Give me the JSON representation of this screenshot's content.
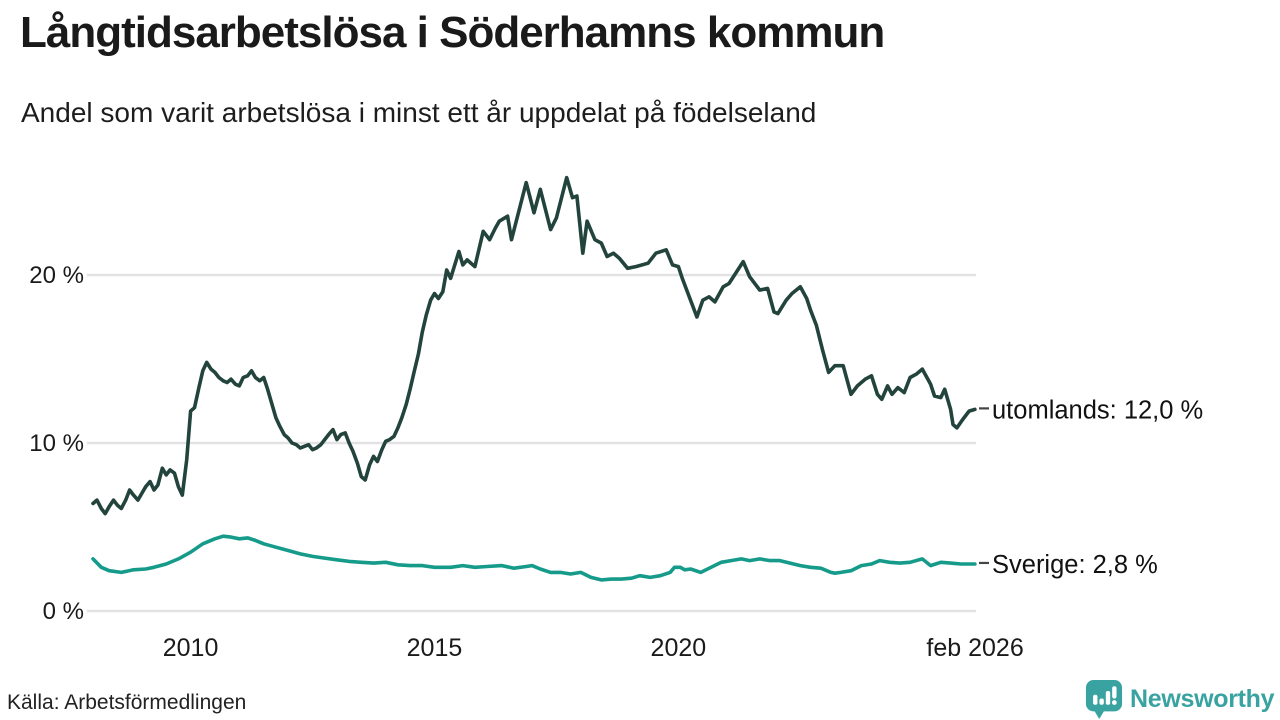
{
  "header": {
    "title": "Långtidsarbetslösa i Söderhamns kommun",
    "subtitle": "Andel som varit arbetslösa i minst ett år uppdelat på födelseland"
  },
  "footer": {
    "source": "Källa: Arbetsförmedlingen",
    "brand": "Newsworthy"
  },
  "colors": {
    "text": "#1a1a1a",
    "grid": "#e2e2e4",
    "label_dash": "#444444",
    "series_utomlands": "#23443c",
    "series_sverige": "#169b8a",
    "brand_teal": "#38a3a0"
  },
  "chart_data": {
    "type": "line",
    "title": "Långtidsarbetslösa i Söderhamns kommun",
    "subtitle": "Andel som varit arbetslösa i minst ett år uppdelat på födelseland",
    "unit": "percent",
    "grid": true,
    "x_range": [
      2008.0,
      2026.083
    ],
    "y_range": [
      0,
      27
    ],
    "x_ticks": [
      {
        "year": 2010,
        "label": "2010"
      },
      {
        "year": 2015,
        "label": "2015"
      },
      {
        "year": 2020,
        "label": "2020"
      },
      {
        "year": 2026.083,
        "label": "feb 2026"
      }
    ],
    "y_ticks": [
      {
        "value": 0,
        "label": "0 %"
      },
      {
        "value": 10,
        "label": "10 %"
      },
      {
        "value": 20,
        "label": "20 %"
      }
    ],
    "series": [
      {
        "name": "utomlands",
        "end_label": "utomlands: 12,0 %",
        "last_value": "12,0 %",
        "color": "#23443c",
        "points": [
          [
            2008,
            6.4
          ],
          [
            2008.08,
            6.6
          ],
          [
            2008.17,
            6.1
          ],
          [
            2008.25,
            5.8
          ],
          [
            2008.33,
            6.2
          ],
          [
            2008.42,
            6.6
          ],
          [
            2008.5,
            6.3
          ],
          [
            2008.58,
            6.1
          ],
          [
            2008.67,
            6.6
          ],
          [
            2008.75,
            7.2
          ],
          [
            2008.83,
            6.9
          ],
          [
            2008.92,
            6.6
          ],
          [
            2009,
            7
          ],
          [
            2009.08,
            7.4
          ],
          [
            2009.17,
            7.7
          ],
          [
            2009.25,
            7.2
          ],
          [
            2009.33,
            7.5
          ],
          [
            2009.42,
            8.5
          ],
          [
            2009.5,
            8.1
          ],
          [
            2009.58,
            8.4
          ],
          [
            2009.67,
            8.2
          ],
          [
            2009.75,
            7.4
          ],
          [
            2009.83,
            6.9
          ],
          [
            2009.92,
            9
          ],
          [
            2010,
            11.9
          ],
          [
            2010.08,
            12.1
          ],
          [
            2010.17,
            13.3
          ],
          [
            2010.25,
            14.3
          ],
          [
            2010.33,
            14.8
          ],
          [
            2010.42,
            14.4
          ],
          [
            2010.5,
            14.2
          ],
          [
            2010.58,
            13.9
          ],
          [
            2010.67,
            13.7
          ],
          [
            2010.75,
            13.6
          ],
          [
            2010.83,
            13.8
          ],
          [
            2010.92,
            13.5
          ],
          [
            2011,
            13.4
          ],
          [
            2011.08,
            13.9
          ],
          [
            2011.17,
            14
          ],
          [
            2011.25,
            14.3
          ],
          [
            2011.33,
            13.9
          ],
          [
            2011.42,
            13.7
          ],
          [
            2011.5,
            13.9
          ],
          [
            2011.58,
            13.2
          ],
          [
            2011.67,
            12.3
          ],
          [
            2011.75,
            11.5
          ],
          [
            2011.83,
            11
          ],
          [
            2011.92,
            10.5
          ],
          [
            2012,
            10.3
          ],
          [
            2012.08,
            10
          ],
          [
            2012.17,
            9.9
          ],
          [
            2012.25,
            9.7
          ],
          [
            2012.33,
            9.8
          ],
          [
            2012.42,
            9.9
          ],
          [
            2012.5,
            9.6
          ],
          [
            2012.58,
            9.7
          ],
          [
            2012.67,
            9.9
          ],
          [
            2012.75,
            10.2
          ],
          [
            2012.83,
            10.5
          ],
          [
            2012.92,
            10.8
          ],
          [
            2013,
            10.2
          ],
          [
            2013.08,
            10.5
          ],
          [
            2013.17,
            10.6
          ],
          [
            2013.25,
            10
          ],
          [
            2013.33,
            9.5
          ],
          [
            2013.42,
            8.8
          ],
          [
            2013.5,
            8
          ],
          [
            2013.58,
            7.8
          ],
          [
            2013.67,
            8.7
          ],
          [
            2013.75,
            9.2
          ],
          [
            2013.83,
            8.9
          ],
          [
            2013.92,
            9.6
          ],
          [
            2014,
            10.1
          ],
          [
            2014.08,
            10.2
          ],
          [
            2014.17,
            10.4
          ],
          [
            2014.25,
            10.9
          ],
          [
            2014.33,
            11.5
          ],
          [
            2014.42,
            12.3
          ],
          [
            2014.5,
            13.2
          ],
          [
            2014.58,
            14.2
          ],
          [
            2014.67,
            15.3
          ],
          [
            2014.75,
            16.6
          ],
          [
            2014.83,
            17.6
          ],
          [
            2014.92,
            18.5
          ],
          [
            2015,
            18.9
          ],
          [
            2015.08,
            18.6
          ],
          [
            2015.17,
            19
          ],
          [
            2015.25,
            20.3
          ],
          [
            2015.33,
            19.8
          ],
          [
            2015.5,
            21.4
          ],
          [
            2015.58,
            20.6
          ],
          [
            2015.67,
            20.9
          ],
          [
            2015.83,
            20.5
          ],
          [
            2016,
            22.6
          ],
          [
            2016.13,
            22.1
          ],
          [
            2016.25,
            22.8
          ],
          [
            2016.33,
            23.2
          ],
          [
            2016.5,
            23.5
          ],
          [
            2016.58,
            22.1
          ],
          [
            2016.88,
            25.5
          ],
          [
            2017.04,
            23.7
          ],
          [
            2017.17,
            25.1
          ],
          [
            2017.38,
            22.7
          ],
          [
            2017.5,
            23.4
          ],
          [
            2017.71,
            25.8
          ],
          [
            2017.83,
            24.6
          ],
          [
            2017.92,
            24.7
          ],
          [
            2018.04,
            21.3
          ],
          [
            2018.13,
            23.2
          ],
          [
            2018.29,
            22.1
          ],
          [
            2018.42,
            21.9
          ],
          [
            2018.54,
            21.1
          ],
          [
            2018.67,
            21.3
          ],
          [
            2018.79,
            21
          ],
          [
            2018.96,
            20.4
          ],
          [
            2019.13,
            20.5
          ],
          [
            2019.38,
            20.7
          ],
          [
            2019.54,
            21.3
          ],
          [
            2019.75,
            21.5
          ],
          [
            2019.88,
            20.6
          ],
          [
            2020,
            20.5
          ],
          [
            2020.08,
            19.8
          ],
          [
            2020.38,
            17.5
          ],
          [
            2020.5,
            18.5
          ],
          [
            2020.63,
            18.7
          ],
          [
            2020.75,
            18.4
          ],
          [
            2020.92,
            19.3
          ],
          [
            2021.04,
            19.5
          ],
          [
            2021.33,
            20.8
          ],
          [
            2021.46,
            19.9
          ],
          [
            2021.67,
            19.1
          ],
          [
            2021.83,
            19.2
          ],
          [
            2021.96,
            17.8
          ],
          [
            2022.04,
            17.7
          ],
          [
            2022.21,
            18.5
          ],
          [
            2022.33,
            18.9
          ],
          [
            2022.5,
            19.3
          ],
          [
            2022.63,
            18.6
          ],
          [
            2022.71,
            17.9
          ],
          [
            2022.83,
            17
          ],
          [
            2022.96,
            15.5
          ],
          [
            2023.08,
            14.2
          ],
          [
            2023.21,
            14.6
          ],
          [
            2023.38,
            14.6
          ],
          [
            2023.54,
            12.9
          ],
          [
            2023.67,
            13.4
          ],
          [
            2023.83,
            13.8
          ],
          [
            2023.96,
            14
          ],
          [
            2024.08,
            12.9
          ],
          [
            2024.17,
            12.6
          ],
          [
            2024.29,
            13.4
          ],
          [
            2024.38,
            12.9
          ],
          [
            2024.5,
            13.3
          ],
          [
            2024.63,
            13
          ],
          [
            2024.75,
            13.9
          ],
          [
            2024.88,
            14.1
          ],
          [
            2025,
            14.4
          ],
          [
            2025.17,
            13.5
          ],
          [
            2025.25,
            12.8
          ],
          [
            2025.38,
            12.7
          ],
          [
            2025.46,
            13.2
          ],
          [
            2025.58,
            12
          ],
          [
            2025.63,
            11.1
          ],
          [
            2025.71,
            10.9
          ],
          [
            2025.83,
            11.4
          ],
          [
            2025.96,
            11.9
          ],
          [
            2026.08,
            12
          ]
        ]
      },
      {
        "name": "Sverige",
        "end_label": "Sverige:  2,8 %",
        "last_value": "2,8 %",
        "color": "#169b8a",
        "points": [
          [
            2008,
            3.1
          ],
          [
            2008.17,
            2.6
          ],
          [
            2008.33,
            2.4
          ],
          [
            2008.58,
            2.3
          ],
          [
            2008.83,
            2.45
          ],
          [
            2009.08,
            2.5
          ],
          [
            2009.25,
            2.6
          ],
          [
            2009.5,
            2.8
          ],
          [
            2009.75,
            3.1
          ],
          [
            2010,
            3.5
          ],
          [
            2010.25,
            4
          ],
          [
            2010.5,
            4.3
          ],
          [
            2010.67,
            4.45
          ],
          [
            2010.83,
            4.4
          ],
          [
            2011,
            4.3
          ],
          [
            2011.17,
            4.35
          ],
          [
            2011.33,
            4.2
          ],
          [
            2011.5,
            4
          ],
          [
            2011.75,
            3.8
          ],
          [
            2012,
            3.6
          ],
          [
            2012.25,
            3.4
          ],
          [
            2012.5,
            3.25
          ],
          [
            2012.75,
            3.15
          ],
          [
            2013,
            3.05
          ],
          [
            2013.25,
            2.95
          ],
          [
            2013.5,
            2.9
          ],
          [
            2013.75,
            2.85
          ],
          [
            2014,
            2.9
          ],
          [
            2014.25,
            2.75
          ],
          [
            2014.5,
            2.7
          ],
          [
            2014.75,
            2.7
          ],
          [
            2015,
            2.6
          ],
          [
            2015.33,
            2.6
          ],
          [
            2015.58,
            2.7
          ],
          [
            2015.83,
            2.6
          ],
          [
            2016.08,
            2.65
          ],
          [
            2016.38,
            2.7
          ],
          [
            2016.63,
            2.55
          ],
          [
            2016.88,
            2.65
          ],
          [
            2017,
            2.7
          ],
          [
            2017.17,
            2.5
          ],
          [
            2017.38,
            2.3
          ],
          [
            2017.58,
            2.3
          ],
          [
            2017.79,
            2.2
          ],
          [
            2018,
            2.3
          ],
          [
            2018.21,
            2
          ],
          [
            2018.42,
            1.85
          ],
          [
            2018.63,
            1.9
          ],
          [
            2018.83,
            1.9
          ],
          [
            2019.04,
            1.95
          ],
          [
            2019.21,
            2.1
          ],
          [
            2019.42,
            2
          ],
          [
            2019.63,
            2.1
          ],
          [
            2019.83,
            2.3
          ],
          [
            2019.92,
            2.6
          ],
          [
            2020.04,
            2.6
          ],
          [
            2020.13,
            2.45
          ],
          [
            2020.25,
            2.5
          ],
          [
            2020.46,
            2.3
          ],
          [
            2020.67,
            2.6
          ],
          [
            2020.88,
            2.9
          ],
          [
            2021.08,
            3
          ],
          [
            2021.29,
            3.1
          ],
          [
            2021.46,
            3
          ],
          [
            2021.67,
            3.1
          ],
          [
            2021.88,
            3
          ],
          [
            2022.08,
            3
          ],
          [
            2022.29,
            2.85
          ],
          [
            2022.5,
            2.7
          ],
          [
            2022.71,
            2.6
          ],
          [
            2022.92,
            2.55
          ],
          [
            2023.13,
            2.3
          ],
          [
            2023.21,
            2.25
          ],
          [
            2023.33,
            2.3
          ],
          [
            2023.54,
            2.4
          ],
          [
            2023.75,
            2.7
          ],
          [
            2023.96,
            2.8
          ],
          [
            2024.13,
            3
          ],
          [
            2024.33,
            2.9
          ],
          [
            2024.54,
            2.85
          ],
          [
            2024.75,
            2.9
          ],
          [
            2025,
            3.1
          ],
          [
            2025.17,
            2.7
          ],
          [
            2025.38,
            2.9
          ],
          [
            2025.58,
            2.85
          ],
          [
            2025.79,
            2.8
          ],
          [
            2026.08,
            2.8
          ]
        ]
      }
    ]
  }
}
